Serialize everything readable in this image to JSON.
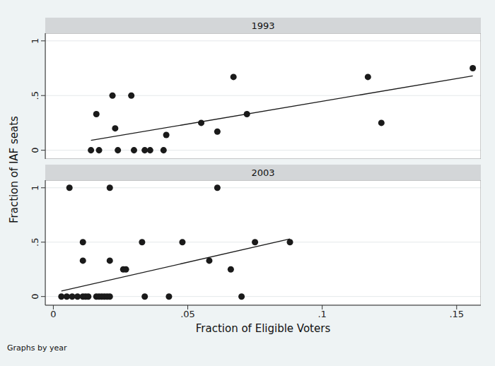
{
  "ylabel": "Fraction of IAF seats",
  "xlabel": "Fraction of Eligible Voters",
  "note": "Graphs by year",
  "chart_data": [
    {
      "type": "scatter",
      "title": "1993",
      "xlim": [
        -0.003,
        0.159
      ],
      "xticks": [
        0,
        {
          "value": 0.05,
          "label": ".05"
        },
        {
          "value": 0.1,
          "label": ".1"
        },
        {
          "value": 0.15,
          "label": ".15"
        }
      ],
      "ylim": [
        -0.08,
        1.07
      ],
      "yticks": [
        0,
        {
          "value": 0.5,
          "label": ".5"
        },
        1
      ],
      "grid": true,
      "tick_labels": "y",
      "series": [
        {
          "type": "scatter",
          "color": "#1a1a1a",
          "marker": "circle",
          "x": [
            0.014,
            0.017,
            0.016,
            0.022,
            0.023,
            0.024,
            0.029,
            0.03,
            0.034,
            0.036,
            0.041,
            0.042,
            0.055,
            0.061,
            0.067,
            0.072,
            0.117,
            0.122,
            0.156
          ],
          "values": [
            0,
            0,
            0.33,
            0.5,
            0.2,
            0,
            0.5,
            0,
            0,
            0,
            0,
            0.14,
            0.25,
            0.17,
            0.67,
            0.33,
            0.67,
            0.25,
            0.75
          ]
        },
        {
          "type": "line",
          "color": "#1a1a1a",
          "line_style": "solid",
          "x": [
            0.014,
            0.156
          ],
          "values": [
            0.09,
            0.68
          ]
        }
      ]
    },
    {
      "type": "scatter",
      "title": "2003",
      "xlim": [
        -0.003,
        0.159
      ],
      "xticks": [
        0,
        {
          "value": 0.05,
          "label": ".05"
        },
        {
          "value": 0.1,
          "label": ".1"
        },
        {
          "value": 0.15,
          "label": ".15"
        }
      ],
      "ylim": [
        -0.08,
        1.07
      ],
      "yticks": [
        0,
        {
          "value": 0.5,
          "label": ".5"
        },
        1
      ],
      "grid": true,
      "tick_labels": true,
      "series": [
        {
          "type": "scatter",
          "color": "#1a1a1a",
          "marker": "circle",
          "x": [
            0.003,
            0.005,
            0.007,
            0.009,
            0.011,
            0.012,
            0.013,
            0.016,
            0.017,
            0.018,
            0.019,
            0.02,
            0.021,
            0.006,
            0.011,
            0.011,
            0.021,
            0.021,
            0.026,
            0.027,
            0.033,
            0.034,
            0.043,
            0.048,
            0.058,
            0.061,
            0.066,
            0.07,
            0.075,
            0.088
          ],
          "values": [
            0,
            0,
            0,
            0,
            0,
            0,
            0,
            0,
            0,
            0,
            0,
            0,
            0,
            1,
            0.5,
            0.33,
            1,
            0.33,
            0.25,
            0.25,
            0.5,
            0,
            0,
            0.5,
            0.33,
            1,
            0.25,
            0,
            0.5,
            0.5
          ]
        },
        {
          "type": "line",
          "color": "#1a1a1a",
          "line_style": "solid",
          "x": [
            0.003,
            0.088
          ],
          "values": [
            0.05,
            0.53
          ]
        }
      ]
    }
  ]
}
